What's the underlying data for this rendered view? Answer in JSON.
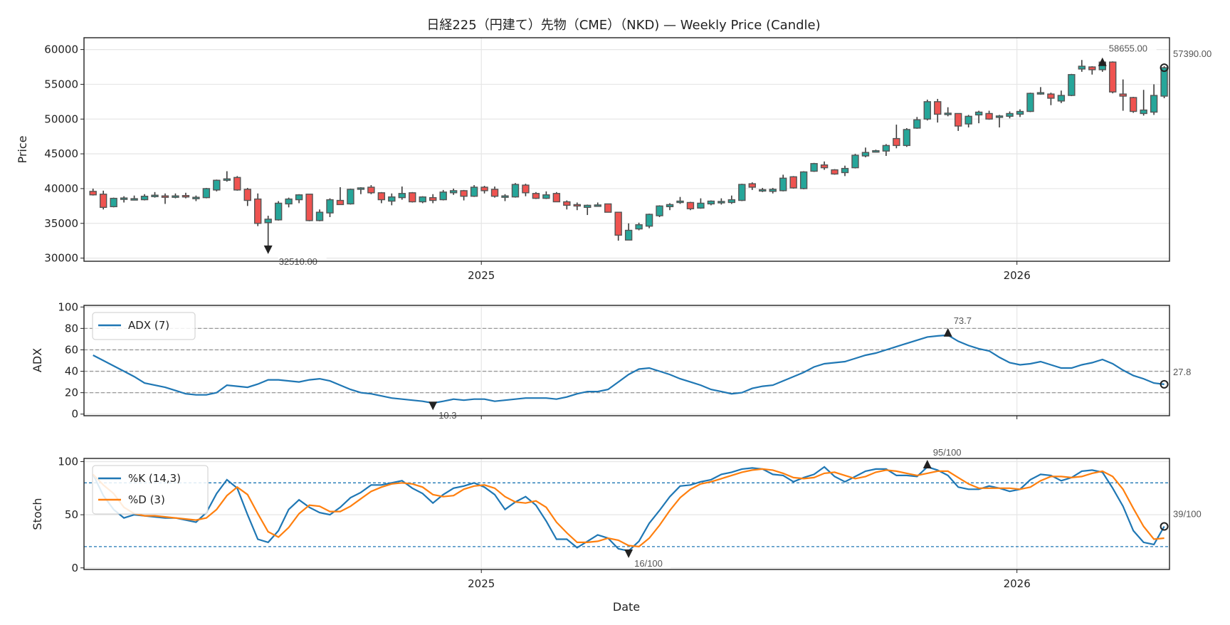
{
  "chart_data": [
    {
      "type": "candlestick",
      "title": "日経225（円建て）先物（CME）（NKD) — Weekly Price (Candle)",
      "xlabel": "",
      "ylabel": "Price",
      "ylim": [
        29550,
        61700
      ],
      "y_ticks": [
        30000,
        35000,
        40000,
        45000,
        50000,
        55000,
        60000
      ],
      "x_ticks": [
        {
          "label": "2025",
          "index": 37.7
        },
        {
          "label": "2026",
          "index": 89.7
        }
      ],
      "grid": true,
      "colors": {
        "up": "#26a69a",
        "down": "#ef5350",
        "edge": "#555555"
      },
      "ohlc": [
        [
          39600,
          40000,
          39000,
          39100
        ],
        [
          39200,
          39700,
          37000,
          37300
        ],
        [
          37400,
          38700,
          37300,
          38600
        ],
        [
          38600,
          38900,
          38000,
          38650
        ],
        [
          38500,
          39000,
          38300,
          38550
        ],
        [
          38400,
          39200,
          38300,
          38900
        ],
        [
          39000,
          39500,
          38700,
          39050
        ],
        [
          38950,
          39300,
          37800,
          38900
        ],
        [
          38900,
          39300,
          38600,
          38950
        ],
        [
          39000,
          39400,
          38600,
          38800
        ],
        [
          38700,
          39000,
          38200,
          38750
        ],
        [
          38700,
          40100,
          38600,
          40000
        ],
        [
          39800,
          41300,
          39600,
          41200
        ],
        [
          41200,
          42500,
          41000,
          41400
        ],
        [
          41600,
          41800,
          39700,
          39800
        ],
        [
          39900,
          40100,
          37500,
          38300
        ],
        [
          38500,
          39300,
          34600,
          35000
        ],
        [
          35100,
          36100,
          30900,
          35600
        ],
        [
          35500,
          38200,
          35400,
          37900
        ],
        [
          37800,
          38700,
          37300,
          38500
        ],
        [
          38400,
          39200,
          37900,
          39100
        ],
        [
          39200,
          39200,
          35300,
          35400
        ],
        [
          35400,
          37000,
          35300,
          36600
        ],
        [
          36500,
          38600,
          35900,
          38400
        ],
        [
          38300,
          40200,
          37700,
          37700
        ],
        [
          37800,
          40000,
          37700,
          39900
        ],
        [
          40000,
          40200,
          39200,
          40100
        ],
        [
          40200,
          40500,
          39200,
          39400
        ],
        [
          39400,
          39500,
          37900,
          38400
        ],
        [
          38200,
          39300,
          37600,
          38800
        ],
        [
          38700,
          40300,
          38400,
          39300
        ],
        [
          39400,
          39500,
          38000,
          38100
        ],
        [
          38100,
          38900,
          37900,
          38800
        ],
        [
          38700,
          39200,
          37900,
          38300
        ],
        [
          38400,
          39800,
          38300,
          39500
        ],
        [
          39400,
          40000,
          39100,
          39700
        ],
        [
          39700,
          39800,
          38300,
          38900
        ],
        [
          38900,
          40500,
          38800,
          40200
        ],
        [
          40200,
          40400,
          39300,
          39700
        ],
        [
          39900,
          40300,
          38700,
          38900
        ],
        [
          38900,
          39200,
          38200,
          38950
        ],
        [
          38800,
          40800,
          38700,
          40600
        ],
        [
          40500,
          40700,
          38900,
          39400
        ],
        [
          39300,
          39500,
          38500,
          38600
        ],
        [
          38600,
          39600,
          38500,
          39100
        ],
        [
          39300,
          39500,
          38100,
          38100
        ],
        [
          38100,
          38300,
          37000,
          37600
        ],
        [
          37700,
          38000,
          36900,
          37500
        ],
        [
          37300,
          37700,
          36200,
          37600
        ],
        [
          37600,
          38000,
          37400,
          37650
        ],
        [
          37800,
          37800,
          36600,
          36600
        ],
        [
          36600,
          36600,
          32510,
          33300
        ],
        [
          32600,
          35000,
          32600,
          34000
        ],
        [
          34200,
          35100,
          34000,
          34800
        ],
        [
          34600,
          36400,
          34300,
          36300
        ],
        [
          36100,
          37600,
          35900,
          37500
        ],
        [
          37400,
          37900,
          36900,
          37700
        ],
        [
          38000,
          38800,
          37800,
          38200
        ],
        [
          38000,
          38100,
          36900,
          37100
        ],
        [
          37200,
          38600,
          37100,
          37900
        ],
        [
          37800,
          38300,
          37600,
          38200
        ],
        [
          38100,
          38600,
          37700,
          38150
        ],
        [
          38000,
          39000,
          37800,
          38400
        ],
        [
          38300,
          40700,
          38200,
          40600
        ],
        [
          40700,
          40900,
          39800,
          40200
        ],
        [
          39800,
          40100,
          39500,
          39850
        ],
        [
          39600,
          40100,
          39300,
          39900
        ],
        [
          39700,
          42000,
          39600,
          41500
        ],
        [
          41700,
          41800,
          40000,
          40100
        ],
        [
          40000,
          42500,
          39900,
          42400
        ],
        [
          42500,
          43700,
          42400,
          43600
        ],
        [
          43400,
          43900,
          42700,
          43000
        ],
        [
          42700,
          42800,
          42000,
          42100
        ],
        [
          42300,
          43300,
          41800,
          42900
        ],
        [
          43000,
          45000,
          42900,
          44800
        ],
        [
          44700,
          45900,
          44500,
          45200
        ],
        [
          45350,
          45600,
          45200,
          45450
        ],
        [
          45400,
          46400,
          44700,
          46200
        ],
        [
          47200,
          49200,
          45800,
          46200
        ],
        [
          46200,
          48700,
          46000,
          48500
        ],
        [
          48700,
          50300,
          48600,
          49900
        ],
        [
          50000,
          52800,
          49800,
          52500
        ],
        [
          52500,
          52900,
          49500,
          50700
        ],
        [
          50750,
          51700,
          50400,
          50850
        ],
        [
          50800,
          50800,
          48300,
          49000
        ],
        [
          49300,
          50600,
          48800,
          50400
        ],
        [
          50600,
          51200,
          49400,
          51000
        ],
        [
          50800,
          51200,
          49900,
          50000
        ],
        [
          50400,
          50600,
          48800,
          50450
        ],
        [
          50400,
          51100,
          50100,
          50800
        ],
        [
          50700,
          51400,
          50300,
          51100
        ],
        [
          51100,
          53800,
          51000,
          53700
        ],
        [
          53700,
          54600,
          53500,
          53800
        ],
        [
          53600,
          53800,
          52000,
          53000
        ],
        [
          52600,
          54100,
          52300,
          53400
        ],
        [
          53400,
          56500,
          53300,
          56400
        ],
        [
          57200,
          58500,
          56800,
          57600
        ],
        [
          57500,
          57600,
          56400,
          57100
        ],
        [
          57100,
          58655,
          56800,
          58200
        ],
        [
          58200,
          58300,
          53700,
          53900
        ],
        [
          53600,
          55700,
          51200,
          53300
        ],
        [
          53100,
          53200,
          50900,
          51100
        ],
        [
          50800,
          54200,
          50500,
          51300
        ],
        [
          51000,
          55000,
          50600,
          53400
        ],
        [
          53300,
          57600,
          53000,
          57390
        ]
      ],
      "annotations": {
        "max": "58655.00",
        "min": "32510.00",
        "last": "57390.00"
      }
    },
    {
      "type": "line",
      "ylabel": "ADX",
      "ylim": [
        -1.5,
        101.5
      ],
      "y_ticks": [
        0,
        20,
        40,
        60,
        80,
        100
      ],
      "ref_lines": [
        20,
        40,
        60,
        80
      ],
      "legend_placement": "top-left",
      "series": [
        {
          "name": "ADX (7)",
          "color": "#1f77b4",
          "values": [
            55,
            50,
            45,
            40,
            35,
            29,
            27,
            25,
            22,
            19,
            18,
            18,
            20,
            27,
            26,
            25,
            28,
            32,
            32,
            31,
            30,
            32,
            33,
            31,
            27,
            23,
            20,
            19,
            17,
            15,
            14,
            13,
            12,
            10.3,
            12,
            14,
            13,
            14,
            14,
            12,
            13,
            14,
            15,
            15,
            15,
            14,
            16,
            19,
            21,
            21,
            23,
            30,
            37,
            42,
            43,
            40,
            37,
            33,
            30,
            27,
            23,
            21,
            19,
            20,
            24,
            26,
            27,
            31,
            35,
            39,
            44,
            47,
            48,
            49,
            52,
            55,
            57,
            60,
            63,
            66,
            69,
            72,
            73,
            73.7,
            68,
            64,
            61,
            59,
            53,
            48,
            46,
            47,
            49,
            46,
            43,
            43,
            46,
            48,
            51,
            47,
            41,
            36,
            33,
            29,
            27.8
          ]
        }
      ],
      "annotations": {
        "max": "73.7",
        "min": "10.3",
        "last": "27.8"
      }
    },
    {
      "type": "line",
      "xlabel": "Date",
      "ylabel": "Stoch",
      "ylim": [
        -1.5,
        103
      ],
      "y_ticks": [
        0,
        50,
        100
      ],
      "ref_lines": [
        20,
        80
      ],
      "legend_placement": "top-left",
      "series": [
        {
          "name": "%K (14,3)",
          "color": "#1f77b4",
          "values": [
            88,
            68,
            55,
            47,
            50,
            49,
            48,
            47,
            47,
            45,
            43,
            52,
            70,
            83,
            75,
            50,
            27,
            24,
            35,
            55,
            64,
            57,
            52,
            50,
            57,
            66,
            71,
            78,
            78,
            80,
            82,
            75,
            70,
            61,
            69,
            75,
            77,
            80,
            76,
            69,
            55,
            62,
            67,
            59,
            44,
            27,
            27,
            19,
            25,
            31,
            28,
            18,
            16,
            25,
            42,
            54,
            67,
            77,
            78,
            81,
            83,
            88,
            90,
            93,
            94,
            93,
            88,
            87,
            81,
            85,
            88,
            95,
            86,
            81,
            86,
            91,
            93,
            93,
            87,
            87,
            86,
            95,
            92,
            87,
            76,
            74,
            74,
            77,
            75,
            72,
            74,
            83,
            88,
            87,
            82,
            85,
            91,
            92,
            90,
            75,
            58,
            35,
            24,
            22,
            39
          ]
        },
        {
          "name": "%D (3)",
          "color": "#ff7f0e",
          "values": [
            88,
            78,
            70,
            57,
            51,
            49,
            49,
            48,
            47,
            46,
            45,
            47,
            55,
            68,
            76,
            69,
            51,
            34,
            29,
            38,
            51,
            59,
            58,
            53,
            53,
            58,
            65,
            72,
            76,
            79,
            80,
            79,
            76,
            69,
            67,
            68,
            74,
            77,
            78,
            75,
            67,
            62,
            61,
            63,
            57,
            43,
            33,
            24,
            24,
            25,
            28,
            26,
            21,
            20,
            28,
            40,
            54,
            66,
            74,
            79,
            81,
            84,
            87,
            90,
            92,
            93,
            92,
            89,
            85,
            84,
            85,
            89,
            90,
            87,
            84,
            86,
            90,
            92,
            91,
            89,
            87,
            89,
            91,
            91,
            85,
            79,
            75,
            75,
            75,
            75,
            74,
            76,
            82,
            86,
            86,
            85,
            86,
            89,
            91,
            86,
            74,
            56,
            39,
            27,
            28
          ]
        }
      ],
      "annotations": {
        "max": "95/100",
        "min": "16/100",
        "last": "39/100"
      }
    }
  ]
}
